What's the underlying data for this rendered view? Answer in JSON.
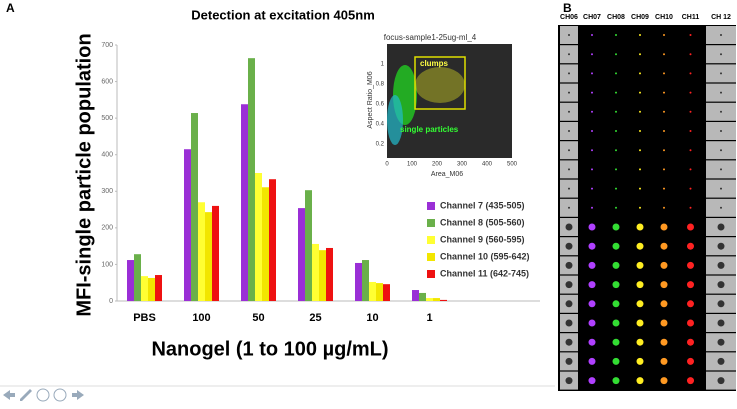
{
  "chart_data": {
    "type": "bar",
    "title": "Detection at  excitation 405nm",
    "panel_label": "A",
    "y_label": "MFI-single particle population",
    "x_label": "Nanogel (1 to 100 µg/mL)",
    "categories": [
      "PBS",
      "100",
      "50",
      "25",
      "10",
      "1"
    ],
    "series": [
      {
        "name": "Channel 7  (435-505)",
        "color": "#9a2fd6",
        "values": [
          112,
          415,
          538,
          254,
          104,
          30
        ]
      },
      {
        "name": "Channel  8 (505-560)",
        "color": "#6ab04a",
        "values": [
          128,
          514,
          664,
          303,
          112,
          22
        ]
      },
      {
        "name": "Channel  9 (560-595)",
        "color": "#ffff33",
        "values": [
          68,
          270,
          350,
          156,
          52,
          8
        ]
      },
      {
        "name": "Channel 10 (595-642)",
        "color": "#f2e600",
        "values": [
          63,
          243,
          311,
          139,
          49,
          8
        ]
      },
      {
        "name": "Channel 11 (642-745)",
        "color": "#ee1111",
        "values": [
          71,
          260,
          333,
          145,
          46,
          3
        ]
      }
    ],
    "ylim": [
      0,
      700
    ],
    "yticks": [
      0,
      100,
      200,
      300,
      400,
      500,
      600,
      700
    ],
    "legend": "right"
  },
  "inset": {
    "title": "focus-sample1-25ug-ml_4",
    "x_label": "Area_M06",
    "y_label": "Aspect Ratio_M06",
    "x_ticks": [
      "0",
      "100",
      "200",
      "300",
      "400",
      "500"
    ],
    "y_ticks": [
      "1",
      "0.8",
      "0.6",
      "0.4",
      "0.2"
    ],
    "clumps": "clumps",
    "single": "single particles"
  },
  "gallery": {
    "panel_label": "B",
    "columns": [
      "CH06",
      "CH07",
      "CH08",
      "CH09",
      "CH10",
      "CH11",
      "CH 12"
    ]
  }
}
